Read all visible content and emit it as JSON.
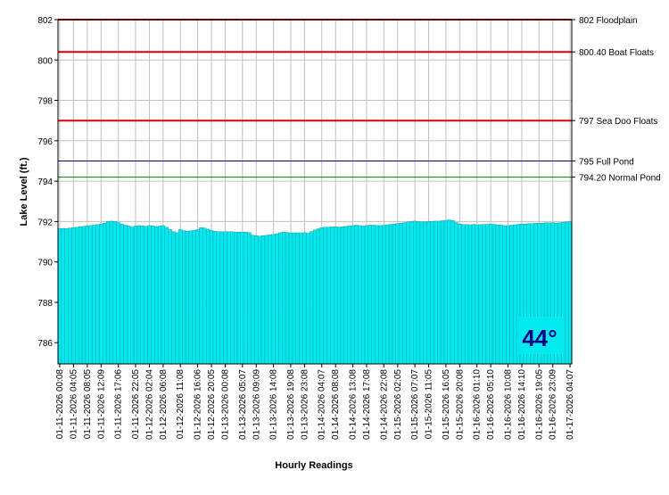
{
  "chart_data": {
    "type": "area",
    "ylabel": "Lake Level (ft.)",
    "xlabel": "Hourly Readings",
    "annotation": "44°",
    "color": "#00eaf0",
    "ylim": [
      784.95,
      802
    ],
    "yticks": [
      786,
      788,
      790,
      792,
      794,
      796,
      798,
      800,
      802
    ],
    "grid": true,
    "reference_lines": [
      {
        "value": 802,
        "label": "802 Floodplain",
        "color": "#e00000"
      },
      {
        "value": 800.4,
        "label": "800.40 Boat Floats",
        "color": "#e00000"
      },
      {
        "value": 797,
        "label": "797 Sea Doo Floats",
        "color": "#e00000"
      },
      {
        "value": 795,
        "label": "795 Full Pond",
        "color": "#000080"
      },
      {
        "value": 794.2,
        "label": "794.20 Normal Pond",
        "color": "#008000"
      }
    ],
    "categories": [
      "01-11-2026 00:08",
      null,
      null,
      null,
      "01-11-2026 04:05",
      null,
      null,
      null,
      "01-11-2026 08:05",
      null,
      null,
      null,
      "01-11-2026 12:09",
      null,
      null,
      null,
      null,
      "01-11-2026 17:06",
      null,
      null,
      null,
      null,
      "01-11-2026 22:05",
      null,
      null,
      null,
      "01-12-2026 02:04",
      null,
      null,
      null,
      "01-12-2026 06:08",
      null,
      null,
      null,
      null,
      "01-12-2026 11:08",
      null,
      null,
      null,
      null,
      "01-12-2026 16:06",
      null,
      null,
      null,
      "01-12-2026 20:05",
      null,
      null,
      null,
      "01-13-2026 00:08",
      null,
      null,
      null,
      null,
      "01-13-2026 05:07",
      null,
      null,
      null,
      "01-13-2026 09:09",
      null,
      null,
      null,
      null,
      "01-13-2026 14:08",
      null,
      null,
      null,
      null,
      "01-13-2026 19:08",
      null,
      null,
      null,
      "01-13-2026 23:08",
      null,
      null,
      null,
      null,
      "01-14-2026 04:07",
      null,
      null,
      null,
      "01-14-2026 08:08",
      null,
      null,
      null,
      null,
      "01-14-2026 13:08",
      null,
      null,
      null,
      "01-14-2026 17:08",
      null,
      null,
      null,
      null,
      "01-14-2026 22:08",
      null,
      null,
      null,
      "01-15-2026 02:05",
      null,
      null,
      null,
      null,
      "01-15-2026 07:07",
      null,
      null,
      null,
      "01-15-2026 11:05",
      null,
      null,
      null,
      null,
      "01-15-2026 16:05",
      null,
      null,
      null,
      "01-15-2026 20:08",
      null,
      null,
      null,
      null,
      "01-16-2026 01:10",
      null,
      null,
      null,
      "01-16-2026 05:10",
      null,
      null,
      null,
      null,
      "01-16-2026 10:08",
      null,
      null,
      null,
      "01-16-2026 14:10",
      null,
      null,
      null,
      null,
      "01-16-2026 19:05",
      null,
      null,
      null,
      "01-16-2026 23:09",
      null,
      null,
      null,
      null,
      "01-17-2026 04:07"
    ],
    "values": [
      791.65,
      791.66,
      791.66,
      791.68,
      791.7,
      791.72,
      791.74,
      791.76,
      791.78,
      791.8,
      791.82,
      791.85,
      791.88,
      791.92,
      792.0,
      792.02,
      792.0,
      791.95,
      791.88,
      791.82,
      791.78,
      791.72,
      791.78,
      791.8,
      791.78,
      791.76,
      791.8,
      791.78,
      791.74,
      791.78,
      791.8,
      791.72,
      791.6,
      791.5,
      791.45,
      791.6,
      791.55,
      791.52,
      791.54,
      791.56,
      791.6,
      791.7,
      791.68,
      791.62,
      791.56,
      791.52,
      791.5,
      791.5,
      791.5,
      791.5,
      791.5,
      791.48,
      791.48,
      791.48,
      791.48,
      791.45,
      791.32,
      791.3,
      791.28,
      791.3,
      791.32,
      791.34,
      791.36,
      791.4,
      791.45,
      791.48,
      791.46,
      791.44,
      791.44,
      791.44,
      791.44,
      791.45,
      791.42,
      791.5,
      791.58,
      791.64,
      791.7,
      791.72,
      791.72,
      791.74,
      791.74,
      791.72,
      791.74,
      791.76,
      791.78,
      791.8,
      791.82,
      791.8,
      791.78,
      791.8,
      791.82,
      791.82,
      791.8,
      791.8,
      791.82,
      791.84,
      791.86,
      791.88,
      791.9,
      791.92,
      791.95,
      791.98,
      792.0,
      792.02,
      792.0,
      791.98,
      791.98,
      792.0,
      792.0,
      792.02,
      792.02,
      792.04,
      792.06,
      792.08,
      792.05,
      791.95,
      791.88,
      791.85,
      791.85,
      791.84,
      791.86,
      791.84,
      791.85,
      791.86,
      791.86,
      791.88,
      791.86,
      791.84,
      791.82,
      791.8,
      791.8,
      791.82,
      791.84,
      791.86,
      791.88,
      791.88,
      791.9,
      791.9,
      791.92,
      791.92,
      791.92,
      791.94,
      791.94,
      791.94,
      791.92,
      791.94,
      791.96,
      791.98,
      792.0
    ]
  }
}
